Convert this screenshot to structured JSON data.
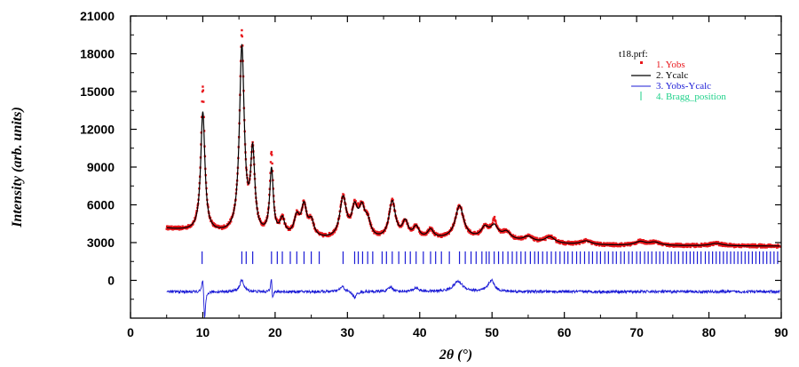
{
  "chart_data": {
    "type": "line",
    "title": "",
    "xlabel": "2θ (°)",
    "ylabel": "Intensity (arb. units)",
    "xlim": [
      0,
      90
    ],
    "ylim": [
      -3000,
      21000
    ],
    "x_ticks": [
      "0",
      "10",
      "20",
      "30",
      "40",
      "50",
      "60",
      "70",
      "80",
      "90"
    ],
    "y_ticks": [
      "0",
      "3000",
      "6000",
      "9000",
      "12000",
      "15000",
      "18000",
      "21000"
    ],
    "legend": {
      "title": "t18.prf:",
      "placement": "top-right",
      "entries": [
        {
          "label": "1. Yobs",
          "color": "#e8161b"
        },
        {
          "label": "2. Ycalc",
          "color": "#000000"
        },
        {
          "label": "3. Yobs-Ycalc",
          "color": "#1b1bd6"
        },
        {
          "label": "4. Bragg_position",
          "color": "#1fd18a"
        }
      ]
    },
    "peaks": [
      {
        "x": 10.0,
        "h": 9500,
        "w": 0.35
      },
      {
        "x": 15.4,
        "h": 14800,
        "w": 0.4
      },
      {
        "x": 16.9,
        "h": 6300,
        "w": 0.35
      },
      {
        "x": 19.5,
        "h": 5200,
        "w": 0.3
      },
      {
        "x": 21.0,
        "h": 1300,
        "w": 0.4
      },
      {
        "x": 23.0,
        "h": 1500,
        "w": 0.45
      },
      {
        "x": 24.0,
        "h": 2400,
        "w": 0.45
      },
      {
        "x": 25.0,
        "h": 1200,
        "w": 0.45
      },
      {
        "x": 29.4,
        "h": 3200,
        "w": 0.55
      },
      {
        "x": 31.0,
        "h": 2200,
        "w": 0.5
      },
      {
        "x": 32.0,
        "h": 2100,
        "w": 0.5
      },
      {
        "x": 32.8,
        "h": 1200,
        "w": 0.5
      },
      {
        "x": 36.2,
        "h": 3000,
        "w": 0.55
      },
      {
        "x": 38.0,
        "h": 1300,
        "w": 0.5
      },
      {
        "x": 39.5,
        "h": 900,
        "w": 0.5
      },
      {
        "x": 41.5,
        "h": 700,
        "w": 0.5
      },
      {
        "x": 45.5,
        "h": 2600,
        "w": 0.7
      },
      {
        "x": 49.0,
        "h": 800,
        "w": 0.6
      },
      {
        "x": 50.3,
        "h": 1000,
        "w": 0.7
      },
      {
        "x": 52.0,
        "h": 600,
        "w": 0.7
      },
      {
        "x": 55.0,
        "h": 400,
        "w": 0.8
      },
      {
        "x": 58.0,
        "h": 500,
        "w": 0.8
      },
      {
        "x": 63.0,
        "h": 300,
        "w": 0.9
      },
      {
        "x": 70.5,
        "h": 300,
        "w": 0.9
      },
      {
        "x": 72.5,
        "h": 250,
        "w": 0.9
      },
      {
        "x": 81.0,
        "h": 200,
        "w": 1.0
      }
    ],
    "obs_extra_peaks": [
      {
        "x": 10.0,
        "h": 2100
      },
      {
        "x": 15.4,
        "h": 1000
      },
      {
        "x": 19.5,
        "h": 1300
      },
      {
        "x": 31.5,
        "h": 300
      },
      {
        "x": 50.3,
        "h": 500
      }
    ],
    "diff_features": [
      {
        "x": 10.0,
        "h": 1500,
        "w": 0.15
      },
      {
        "x": 10.25,
        "h": -2500,
        "w": 0.15
      },
      {
        "x": 15.4,
        "h": 900,
        "w": 0.35
      },
      {
        "x": 19.5,
        "h": 1900,
        "w": 0.12
      },
      {
        "x": 19.6,
        "h": -1200,
        "w": 0.15
      },
      {
        "x": 29.3,
        "h": 400,
        "w": 0.4
      },
      {
        "x": 31.0,
        "h": -500,
        "w": 0.3
      },
      {
        "x": 36.0,
        "h": 350,
        "w": 0.4
      },
      {
        "x": 39.5,
        "h": 300,
        "w": 0.4
      },
      {
        "x": 45.3,
        "h": 800,
        "w": 0.8
      },
      {
        "x": 49.9,
        "h": 900,
        "w": 0.5
      }
    ],
    "diff_offset": -900,
    "bragg_positions": [
      9.9,
      15.4,
      16.0,
      16.9,
      19.5,
      20.3,
      21.0,
      22.1,
      23.0,
      24.0,
      25.0,
      26.1,
      29.4,
      31.0,
      31.5,
      32.1,
      32.8,
      33.5,
      34.8,
      35.4,
      36.2,
      37.1,
      38.0,
      38.7,
      39.5,
      40.5,
      41.5,
      42.2,
      43.0,
      44.1,
      45.5,
      46.3,
      47.1,
      47.8,
      48.6,
      49.2,
      49.6,
      50.3,
      50.9,
      51.5,
      52.2,
      52.8,
      53.4,
      54.0,
      54.6,
      55.3,
      55.9,
      56.4,
      57.0,
      57.6,
      58.2,
      58.8,
      59.4,
      60.0,
      60.5,
      61.1,
      61.7,
      62.2,
      62.8,
      63.4,
      63.9,
      64.5,
      65.0,
      65.6,
      66.1,
      66.7,
      67.2,
      67.8,
      68.3,
      68.9,
      69.4,
      70.0,
      70.5,
      71.1,
      71.6,
      72.1,
      72.7,
      73.2,
      73.7,
      74.3,
      74.8,
      75.3,
      75.8,
      76.4,
      76.9,
      77.4,
      77.9,
      78.4,
      78.9,
      79.5,
      80.0,
      80.5,
      81.0,
      81.5,
      82.0,
      82.5,
      83.0,
      83.5,
      84.0,
      84.5,
      85.0,
      85.5,
      86.0,
      86.5,
      87.0,
      87.5,
      88.0,
      88.5,
      89.0,
      89.5
    ]
  }
}
